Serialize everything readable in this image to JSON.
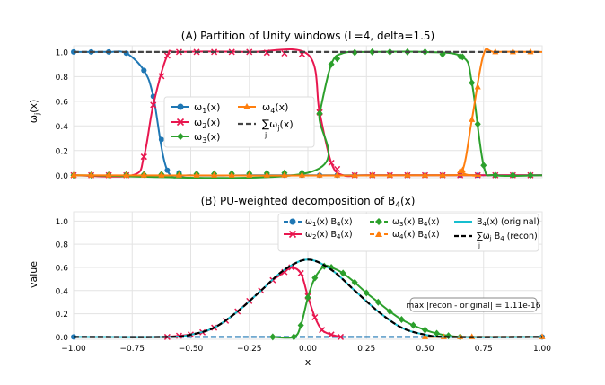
{
  "chart_data": [
    {
      "type": "line",
      "title": "(A) Partition of Unity windows (L=4, delta=1.5)",
      "xlabel": "",
      "ylabel": "ωj(x)",
      "xlim": [
        -1.0,
        1.0
      ],
      "ylim": [
        -0.02,
        1.05
      ],
      "yticks": [
        "0.0",
        "0.2",
        "0.4",
        "0.6",
        "0.8",
        "1.0"
      ],
      "ytick_values": [
        0.0,
        0.2,
        0.4,
        0.6,
        0.8,
        1.0
      ],
      "grid": true,
      "legend_position": "center-left",
      "legend": [
        "ω1(x)",
        "ω2(x)",
        "ω3(x)",
        "ω4(x)",
        "∑j ωj(x)"
      ],
      "series": [
        {
          "name": "ω1(x)",
          "color": "#1f77b4",
          "marker": "circle",
          "x": [
            -1.0,
            -0.925,
            -0.85,
            -0.775,
            -0.7,
            -0.66,
            -0.6,
            -0.5,
            -0.25,
            0.0,
            0.25,
            0.5,
            0.75,
            1.0
          ],
          "values": [
            1.0,
            1.0,
            1.0,
            0.99,
            0.85,
            0.64,
            0.04,
            0.0,
            0.0,
            0.0,
            0.0,
            0.0,
            0.0,
            0.0
          ]
        },
        {
          "name": "ω2(x)",
          "color": "#e8174f",
          "marker": "x",
          "x": [
            -1.0,
            -0.75,
            -0.7,
            -0.66,
            -0.6,
            -0.55,
            -0.25,
            0.0,
            0.05,
            0.1,
            0.15,
            0.25,
            0.5,
            1.0
          ],
          "values": [
            0.0,
            0.0,
            0.15,
            0.57,
            0.97,
            1.0,
            1.0,
            0.98,
            0.51,
            0.1,
            0.0,
            0.0,
            0.0,
            0.0
          ]
        },
        {
          "name": "ω3(x)",
          "color": "#2ca02c",
          "marker": "diamond",
          "x": [
            -1.0,
            0.0,
            0.05,
            0.1,
            0.15,
            0.25,
            0.5,
            0.66,
            0.7,
            0.75,
            0.8,
            1.0
          ],
          "values": [
            0.0,
            0.02,
            0.5,
            0.9,
            0.99,
            1.0,
            1.0,
            0.96,
            0.75,
            0.08,
            0.0,
            0.0
          ]
        },
        {
          "name": "ω4(x)",
          "color": "#ff7f0e",
          "marker": "triangle",
          "x": [
            -1.0,
            0.6,
            0.66,
            0.7,
            0.75,
            0.8,
            1.0
          ],
          "values": [
            0.0,
            0.0,
            0.04,
            0.45,
            0.98,
            1.0,
            1.0
          ]
        },
        {
          "name": "∑j ωj(x)",
          "color": "#444444",
          "dash": true,
          "x": [
            -1.0,
            1.0
          ],
          "values": [
            1.0,
            1.0
          ]
        }
      ]
    },
    {
      "type": "line",
      "title": "(B) PU-weighted decomposition of B4(x)",
      "xlabel": "x",
      "ylabel": "value",
      "xlim": [
        -1.0,
        1.0
      ],
      "ylim": [
        -0.02,
        1.08
      ],
      "xticks": [
        "−1.00",
        "−0.75",
        "−0.50",
        "−0.25",
        "0.00",
        "0.25",
        "0.50",
        "0.75",
        "1.00"
      ],
      "xtick_values": [
        -1.0,
        -0.75,
        -0.5,
        -0.25,
        0.0,
        0.25,
        0.5,
        0.75,
        1.0
      ],
      "yticks": [
        "0.0",
        "0.2",
        "0.4",
        "0.6",
        "0.8",
        "1.0"
      ],
      "ytick_values": [
        0.0,
        0.2,
        0.4,
        0.6,
        0.8,
        1.0
      ],
      "grid": true,
      "legend_position": "top-right",
      "legend": [
        "ω1(x) B4(x)",
        "ω2(x) B4(x)",
        "ω3(x) B4(x)",
        "ω4(x) B4(x)",
        "B4(x) (original)",
        "∑j ωj B4 (recon)"
      ],
      "annotation": "max |recon - original| = 1.11e-16",
      "series": [
        {
          "name": "ω1(x) B4(x)",
          "color": "#1f77b4",
          "marker": "circle",
          "dash": true,
          "x": [
            -1.0,
            1.0
          ],
          "values": [
            0.0,
            0.0
          ]
        },
        {
          "name": "ω2(x) B4(x)",
          "color": "#e8174f",
          "marker": "x",
          "x": [
            -0.6,
            -0.55,
            -0.5,
            -0.45,
            -0.4,
            -0.35,
            -0.3,
            -0.25,
            -0.2,
            -0.15,
            -0.1,
            -0.07,
            -0.03,
            0.0,
            0.03,
            0.06,
            0.1,
            0.14
          ],
          "values": [
            0.0,
            0.01,
            0.02,
            0.04,
            0.08,
            0.14,
            0.22,
            0.31,
            0.4,
            0.49,
            0.56,
            0.6,
            0.55,
            0.35,
            0.17,
            0.06,
            0.02,
            0.0
          ]
        },
        {
          "name": "ω3(x) B4(x)",
          "color": "#2ca02c",
          "marker": "diamond",
          "x": [
            -0.15,
            -0.06,
            -0.03,
            0.0,
            0.03,
            0.07,
            0.1,
            0.15,
            0.2,
            0.25,
            0.3,
            0.35,
            0.4,
            0.45,
            0.5,
            0.55,
            0.6,
            0.65
          ],
          "values": [
            0.0,
            0.0,
            0.1,
            0.34,
            0.51,
            0.61,
            0.6,
            0.55,
            0.47,
            0.38,
            0.3,
            0.22,
            0.15,
            0.1,
            0.06,
            0.03,
            0.01,
            0.0
          ]
        },
        {
          "name": "ω4(x) B4(x)",
          "color": "#ff7f0e",
          "marker": "triangle",
          "x": [
            0.5,
            0.58,
            0.65,
            0.7,
            1.0
          ],
          "values": [
            0.0,
            0.0,
            0.0,
            0.0,
            0.0
          ]
        },
        {
          "name": "B4(x) (original)",
          "color": "#17becf",
          "x": [
            -1.0,
            -0.6,
            -0.5,
            -0.4,
            -0.3,
            -0.2,
            -0.1,
            0.0,
            0.1,
            0.2,
            0.3,
            0.4,
            0.5,
            0.6,
            1.0
          ],
          "values": [
            0.0,
            0.0,
            0.02,
            0.08,
            0.22,
            0.4,
            0.58,
            0.667,
            0.58,
            0.4,
            0.22,
            0.08,
            0.02,
            0.0,
            0.0
          ]
        },
        {
          "name": "∑j ωj B4 (recon)",
          "color": "#000000",
          "dash": true,
          "x": [
            -1.0,
            -0.6,
            -0.5,
            -0.4,
            -0.3,
            -0.2,
            -0.1,
            0.0,
            0.1,
            0.2,
            0.3,
            0.4,
            0.5,
            0.6,
            1.0
          ],
          "values": [
            0.0,
            0.0,
            0.02,
            0.08,
            0.22,
            0.4,
            0.58,
            0.667,
            0.58,
            0.4,
            0.22,
            0.08,
            0.02,
            0.0,
            0.0
          ]
        }
      ]
    }
  ]
}
